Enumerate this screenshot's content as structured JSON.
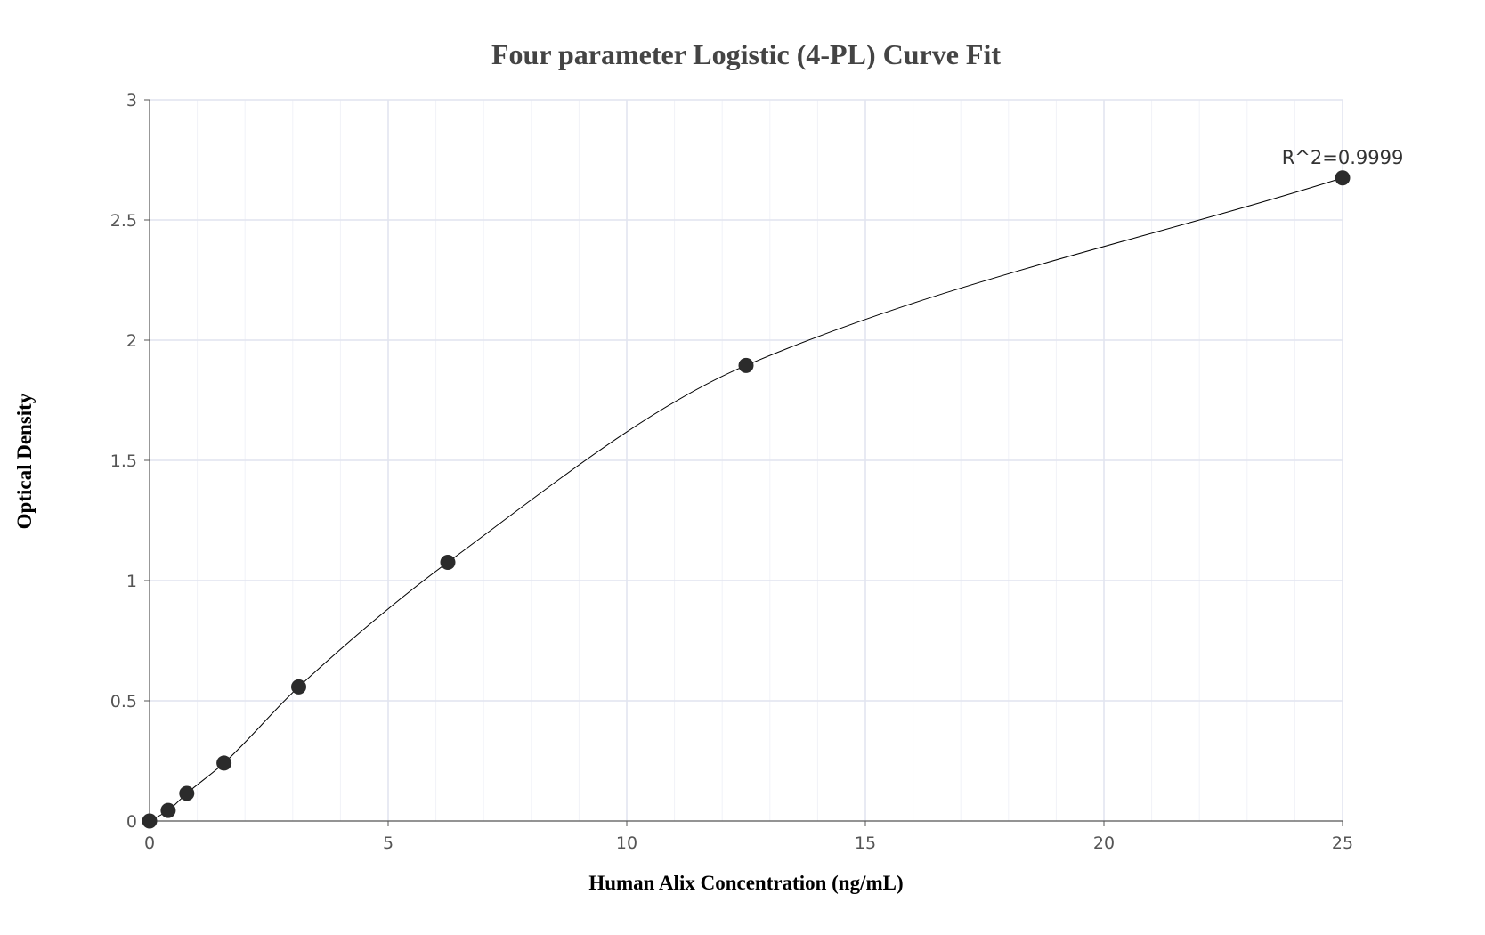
{
  "chart_data": {
    "type": "scatter",
    "title": "Four parameter Logistic (4-PL) Curve Fit",
    "xlabel": "Human Alix Concentration (ng/mL)",
    "ylabel": "Optical Density",
    "xlim": [
      0,
      25
    ],
    "ylim": [
      0,
      3
    ],
    "xticks": [
      "0",
      "5",
      "10",
      "15",
      "20",
      "25"
    ],
    "yticks": [
      "0",
      "0.5",
      "1",
      "1.5",
      "2",
      "2.5",
      "3"
    ],
    "grid": true,
    "points": {
      "x": [
        0,
        0.39,
        0.78,
        1.56,
        3.125,
        6.25,
        12.5,
        25
      ],
      "y": [
        0,
        0.044,
        0.115,
        0.241,
        0.558,
        1.076,
        1.895,
        2.675
      ]
    },
    "fit": "4-PL",
    "annotation": "R^2=0.9999",
    "colors": {
      "points": "#2b2b2b",
      "curve": "#000000",
      "grid": "#e6e8f2",
      "axis": "#555555"
    }
  }
}
